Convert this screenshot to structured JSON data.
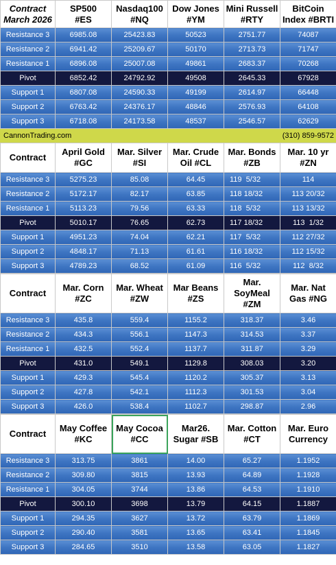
{
  "columns_header": "Contract",
  "sections": [
    {
      "corner": "Contract\nMarch 2026",
      "headers": [
        "SP500\n#ES",
        "Nasdaq100\n#NQ",
        "Dow Jones\n#YM",
        "Mini Russell\n#RTY",
        "BitCoin\nIndex #BRTI"
      ],
      "rows": [
        {
          "label": "Resistance 3",
          "values": [
            "6985.08",
            "25423.83",
            "50523",
            "2751.77",
            "74087"
          ]
        },
        {
          "label": "Resistance 2",
          "values": [
            "6941.42",
            "25209.67",
            "50170",
            "2713.73",
            "71747"
          ]
        },
        {
          "label": "Resistance 1",
          "values": [
            "6896.08",
            "25007.08",
            "49861",
            "2683.37",
            "70268"
          ]
        },
        {
          "label": "Pivot",
          "values": [
            "6852.42",
            "24792.92",
            "49508",
            "2645.33",
            "67928"
          ]
        },
        {
          "label": "Support 1",
          "values": [
            "6807.08",
            "24590.33",
            "49199",
            "2614.97",
            "66448"
          ]
        },
        {
          "label": "Support 2",
          "values": [
            "6763.42",
            "24376.17",
            "48846",
            "2576.93",
            "64108"
          ]
        },
        {
          "label": "Support 3",
          "values": [
            "6718.08",
            "24173.58",
            "48537",
            "2546.57",
            "62629"
          ]
        }
      ]
    },
    {
      "corner": "Contract",
      "headers": [
        "April Gold\n#GC",
        "Mar. Silver\n#SI",
        "Mar. Crude\nOil #CL",
        "Mar. Bonds\n#ZB",
        "Mar. 10 yr\n#ZN"
      ],
      "rows": [
        {
          "label": "Resistance 3",
          "values": [
            "5275.23",
            "85.08",
            "64.45",
            "119  5/32",
            "114"
          ]
        },
        {
          "label": "Resistance 2",
          "values": [
            "5172.17",
            "82.17",
            "63.85",
            "118 18/32",
            "113 20/32"
          ]
        },
        {
          "label": "Resistance 1",
          "values": [
            "5113.23",
            "79.56",
            "63.33",
            "118  5/32",
            "113 13/32"
          ]
        },
        {
          "label": "Pivot",
          "values": [
            "5010.17",
            "76.65",
            "62.73",
            "117 18/32",
            "113  1/32"
          ]
        },
        {
          "label": "Support 1",
          "values": [
            "4951.23",
            "74.04",
            "62.21",
            "117  5/32",
            "112 27/32"
          ]
        },
        {
          "label": "Support 2",
          "values": [
            "4848.17",
            "71.13",
            "61.61",
            "116 18/32",
            "112 15/32"
          ]
        },
        {
          "label": "Support 3",
          "values": [
            "4789.23",
            "68.52",
            "61.09",
            "116  5/32",
            "112  8/32"
          ]
        }
      ]
    },
    {
      "corner": "Contract",
      "headers": [
        "Mar. Corn\n#ZC",
        "Mar.  Wheat\n#ZW",
        "Mar Beans\n#ZS",
        "Mar.\nSoyMeal\n#ZM",
        "Mar. Nat\nGas #NG"
      ],
      "rows": [
        {
          "label": "Resistance 3",
          "values": [
            "435.8",
            "559.4",
            "1155.2",
            "318.37",
            "3.46"
          ]
        },
        {
          "label": "Resistance 2",
          "values": [
            "434.3",
            "556.1",
            "1147.3",
            "314.53",
            "3.37"
          ]
        },
        {
          "label": "Resistance 1",
          "values": [
            "432.5",
            "552.4",
            "1137.7",
            "311.87",
            "3.29"
          ]
        },
        {
          "label": "Pivot",
          "values": [
            "431.0",
            "549.1",
            "1129.8",
            "308.03",
            "3.20"
          ]
        },
        {
          "label": "Support 1",
          "values": [
            "429.3",
            "545.4",
            "1120.2",
            "305.37",
            "3.13"
          ]
        },
        {
          "label": "Support 2",
          "values": [
            "427.8",
            "542.1",
            "1112.3",
            "301.53",
            "3.04"
          ]
        },
        {
          "label": "Support 3",
          "values": [
            "426.0",
            "538.4",
            "1102.7",
            "298.87",
            "2.96"
          ]
        }
      ]
    },
    {
      "corner": "Contract",
      "headers": [
        "May Coffee\n#KC",
        "May Cocoa\n#CC",
        "Mar26.\nSugar #SB",
        "Mar. Cotton\n#CT",
        "Mar. Euro\nCurrency"
      ],
      "rows": [
        {
          "label": "Resistance 3",
          "values": [
            "313.75",
            "3861",
            "14.00",
            "65.27",
            "1.1952"
          ]
        },
        {
          "label": "Resistance 2",
          "values": [
            "309.80",
            "3815",
            "13.93",
            "64.89",
            "1.1928"
          ]
        },
        {
          "label": "Resistance 1",
          "values": [
            "304.05",
            "3744",
            "13.86",
            "64.53",
            "1.1910"
          ]
        },
        {
          "label": "Pivot",
          "values": [
            "300.10",
            "3698",
            "13.79",
            "64.15",
            "1.1887"
          ]
        },
        {
          "label": "Support 1",
          "values": [
            "294.35",
            "3627",
            "13.72",
            "63.79",
            "1.1869"
          ]
        },
        {
          "label": "Support 2",
          "values": [
            "290.40",
            "3581",
            "13.65",
            "63.41",
            "1.1845"
          ]
        },
        {
          "label": "Support 3",
          "values": [
            "284.65",
            "3510",
            "13.58",
            "63.05",
            "1.1827"
          ]
        }
      ]
    }
  ],
  "contact": {
    "site": "CannonTrading.com",
    "phone": "(310) 859-9572"
  }
}
